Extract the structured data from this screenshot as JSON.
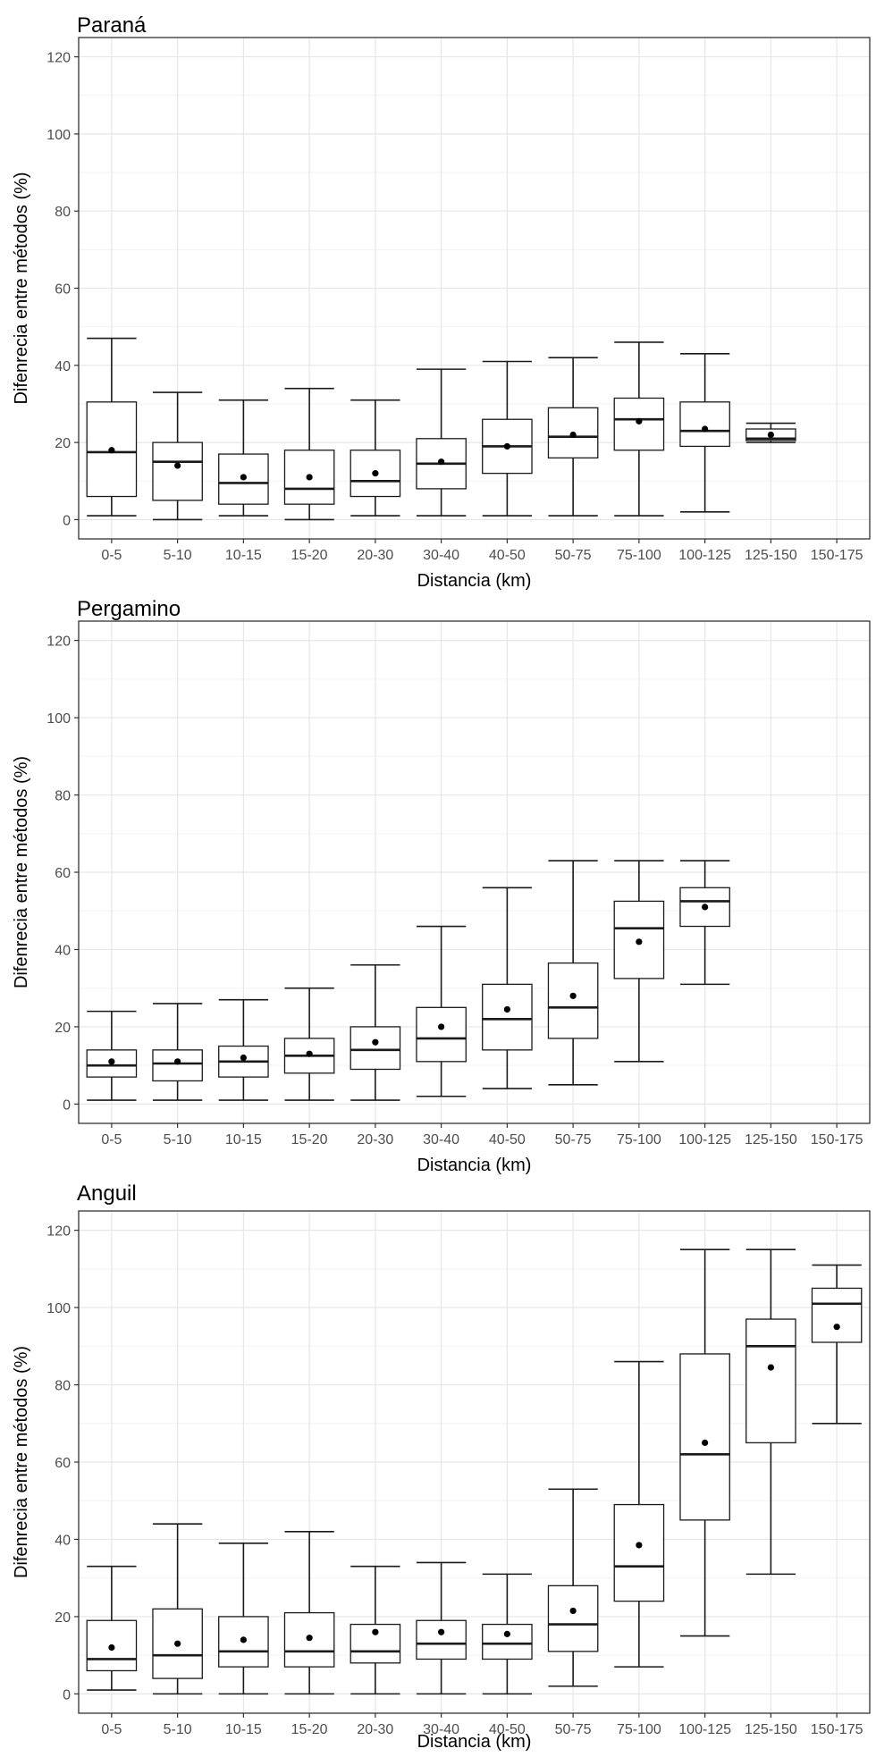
{
  "chart_data": [
    {
      "type": "box",
      "title": "Paraná",
      "xlabel": "Distancia (km)",
      "ylabel": "Difenrecia entre métodos (%)",
      "ylim": [
        -5,
        125
      ],
      "yticks": [
        0,
        20,
        40,
        60,
        80,
        100,
        120
      ],
      "grid": true,
      "categories": [
        "0-5",
        "5-10",
        "10-15",
        "15-20",
        "20-30",
        "30-40",
        "40-50",
        "50-75",
        "75-100",
        "100-125",
        "125-150",
        "150-175"
      ],
      "boxes": [
        {
          "min": 1,
          "q1": 6,
          "median": 17.5,
          "q3": 30.5,
          "max": 47,
          "mean": 18
        },
        {
          "min": 0,
          "q1": 5,
          "median": 15,
          "q3": 20,
          "max": 33,
          "mean": 14
        },
        {
          "min": 1,
          "q1": 4,
          "median": 9.5,
          "q3": 17,
          "max": 31,
          "mean": 11
        },
        {
          "min": 0,
          "q1": 4,
          "median": 8,
          "q3": 18,
          "max": 34,
          "mean": 11
        },
        {
          "min": 1,
          "q1": 6,
          "median": 10,
          "q3": 18,
          "max": 31,
          "mean": 12
        },
        {
          "min": 1,
          "q1": 8,
          "median": 14.5,
          "q3": 21,
          "max": 39,
          "mean": 15
        },
        {
          "min": 1,
          "q1": 12,
          "median": 19,
          "q3": 26,
          "max": 41,
          "mean": 19
        },
        {
          "min": 1,
          "q1": 16,
          "median": 21.5,
          "q3": 29,
          "max": 42,
          "mean": 22
        },
        {
          "min": 1,
          "q1": 18,
          "median": 26,
          "q3": 31.5,
          "max": 46,
          "mean": 25.5
        },
        {
          "min": 2,
          "q1": 19,
          "median": 23,
          "q3": 30.5,
          "max": 43,
          "mean": 23.5
        },
        {
          "min": 20,
          "q1": 20.5,
          "median": 21,
          "q3": 23.5,
          "max": 25,
          "mean": 22
        },
        null
      ]
    },
    {
      "type": "box",
      "title": "Pergamino",
      "xlabel": "Distancia (km)",
      "ylabel": "Difenrecia entre métodos (%)",
      "ylim": [
        -5,
        125
      ],
      "yticks": [
        0,
        20,
        40,
        60,
        80,
        100,
        120
      ],
      "grid": true,
      "categories": [
        "0-5",
        "5-10",
        "10-15",
        "15-20",
        "20-30",
        "30-40",
        "40-50",
        "50-75",
        "75-100",
        "100-125",
        "125-150",
        "150-175"
      ],
      "boxes": [
        {
          "min": 1,
          "q1": 7,
          "median": 10,
          "q3": 14,
          "max": 24,
          "mean": 11
        },
        {
          "min": 1,
          "q1": 6,
          "median": 10.5,
          "q3": 14,
          "max": 26,
          "mean": 11
        },
        {
          "min": 1,
          "q1": 7,
          "median": 11,
          "q3": 15,
          "max": 27,
          "mean": 12
        },
        {
          "min": 1,
          "q1": 8,
          "median": 12.5,
          "q3": 17,
          "max": 30,
          "mean": 13
        },
        {
          "min": 1,
          "q1": 9,
          "median": 14,
          "q3": 20,
          "max": 36,
          "mean": 16
        },
        {
          "min": 2,
          "q1": 11,
          "median": 17,
          "q3": 25,
          "max": 46,
          "mean": 20
        },
        {
          "min": 4,
          "q1": 14,
          "median": 22,
          "q3": 31,
          "max": 56,
          "mean": 24.5
        },
        {
          "min": 5,
          "q1": 17,
          "median": 25,
          "q3": 36.5,
          "max": 63,
          "mean": 28
        },
        {
          "min": 11,
          "q1": 32.5,
          "median": 45.5,
          "q3": 52.5,
          "max": 63,
          "mean": 42
        },
        {
          "min": 31,
          "q1": 46,
          "median": 52.5,
          "q3": 56,
          "max": 63,
          "mean": 51
        },
        null,
        null
      ]
    },
    {
      "type": "box",
      "title": "Anguil",
      "xlabel": "Distancia (km)",
      "ylabel": "Difenrecia entre métodos (%)",
      "ylim": [
        -5,
        125
      ],
      "yticks": [
        0,
        20,
        40,
        60,
        80,
        100,
        120
      ],
      "grid": true,
      "categories": [
        "0-5",
        "5-10",
        "10-15",
        "15-20",
        "20-30",
        "30-40",
        "40-50",
        "50-75",
        "75-100",
        "100-125",
        "125-150",
        "150-175"
      ],
      "boxes": [
        {
          "min": 1,
          "q1": 6,
          "median": 9,
          "q3": 19,
          "max": 33,
          "mean": 12
        },
        {
          "min": 0,
          "q1": 4,
          "median": 10,
          "q3": 22,
          "max": 44,
          "mean": 13
        },
        {
          "min": 0,
          "q1": 7,
          "median": 11,
          "q3": 20,
          "max": 39,
          "mean": 14
        },
        {
          "min": 0,
          "q1": 7,
          "median": 11,
          "q3": 21,
          "max": 42,
          "mean": 14.5
        },
        {
          "min": 0,
          "q1": 8,
          "median": 11,
          "q3": 18,
          "max": 33,
          "mean": 16
        },
        {
          "min": 0,
          "q1": 9,
          "median": 13,
          "q3": 19,
          "max": 34,
          "mean": 16
        },
        {
          "min": 0,
          "q1": 9,
          "median": 13,
          "q3": 18,
          "max": 31,
          "mean": 15.5
        },
        {
          "min": 2,
          "q1": 11,
          "median": 18,
          "q3": 28,
          "max": 53,
          "mean": 21.5
        },
        {
          "min": 7,
          "q1": 24,
          "median": 33,
          "q3": 49,
          "max": 86,
          "mean": 38.5
        },
        {
          "min": 15,
          "q1": 45,
          "median": 62,
          "q3": 88,
          "max": 115,
          "mean": 65
        },
        {
          "min": 31,
          "q1": 65,
          "median": 90,
          "q3": 97,
          "max": 115,
          "mean": 84.5
        },
        {
          "min": 70,
          "q1": 91,
          "median": 101,
          "q3": 105,
          "max": 111,
          "mean": 95
        }
      ]
    }
  ]
}
